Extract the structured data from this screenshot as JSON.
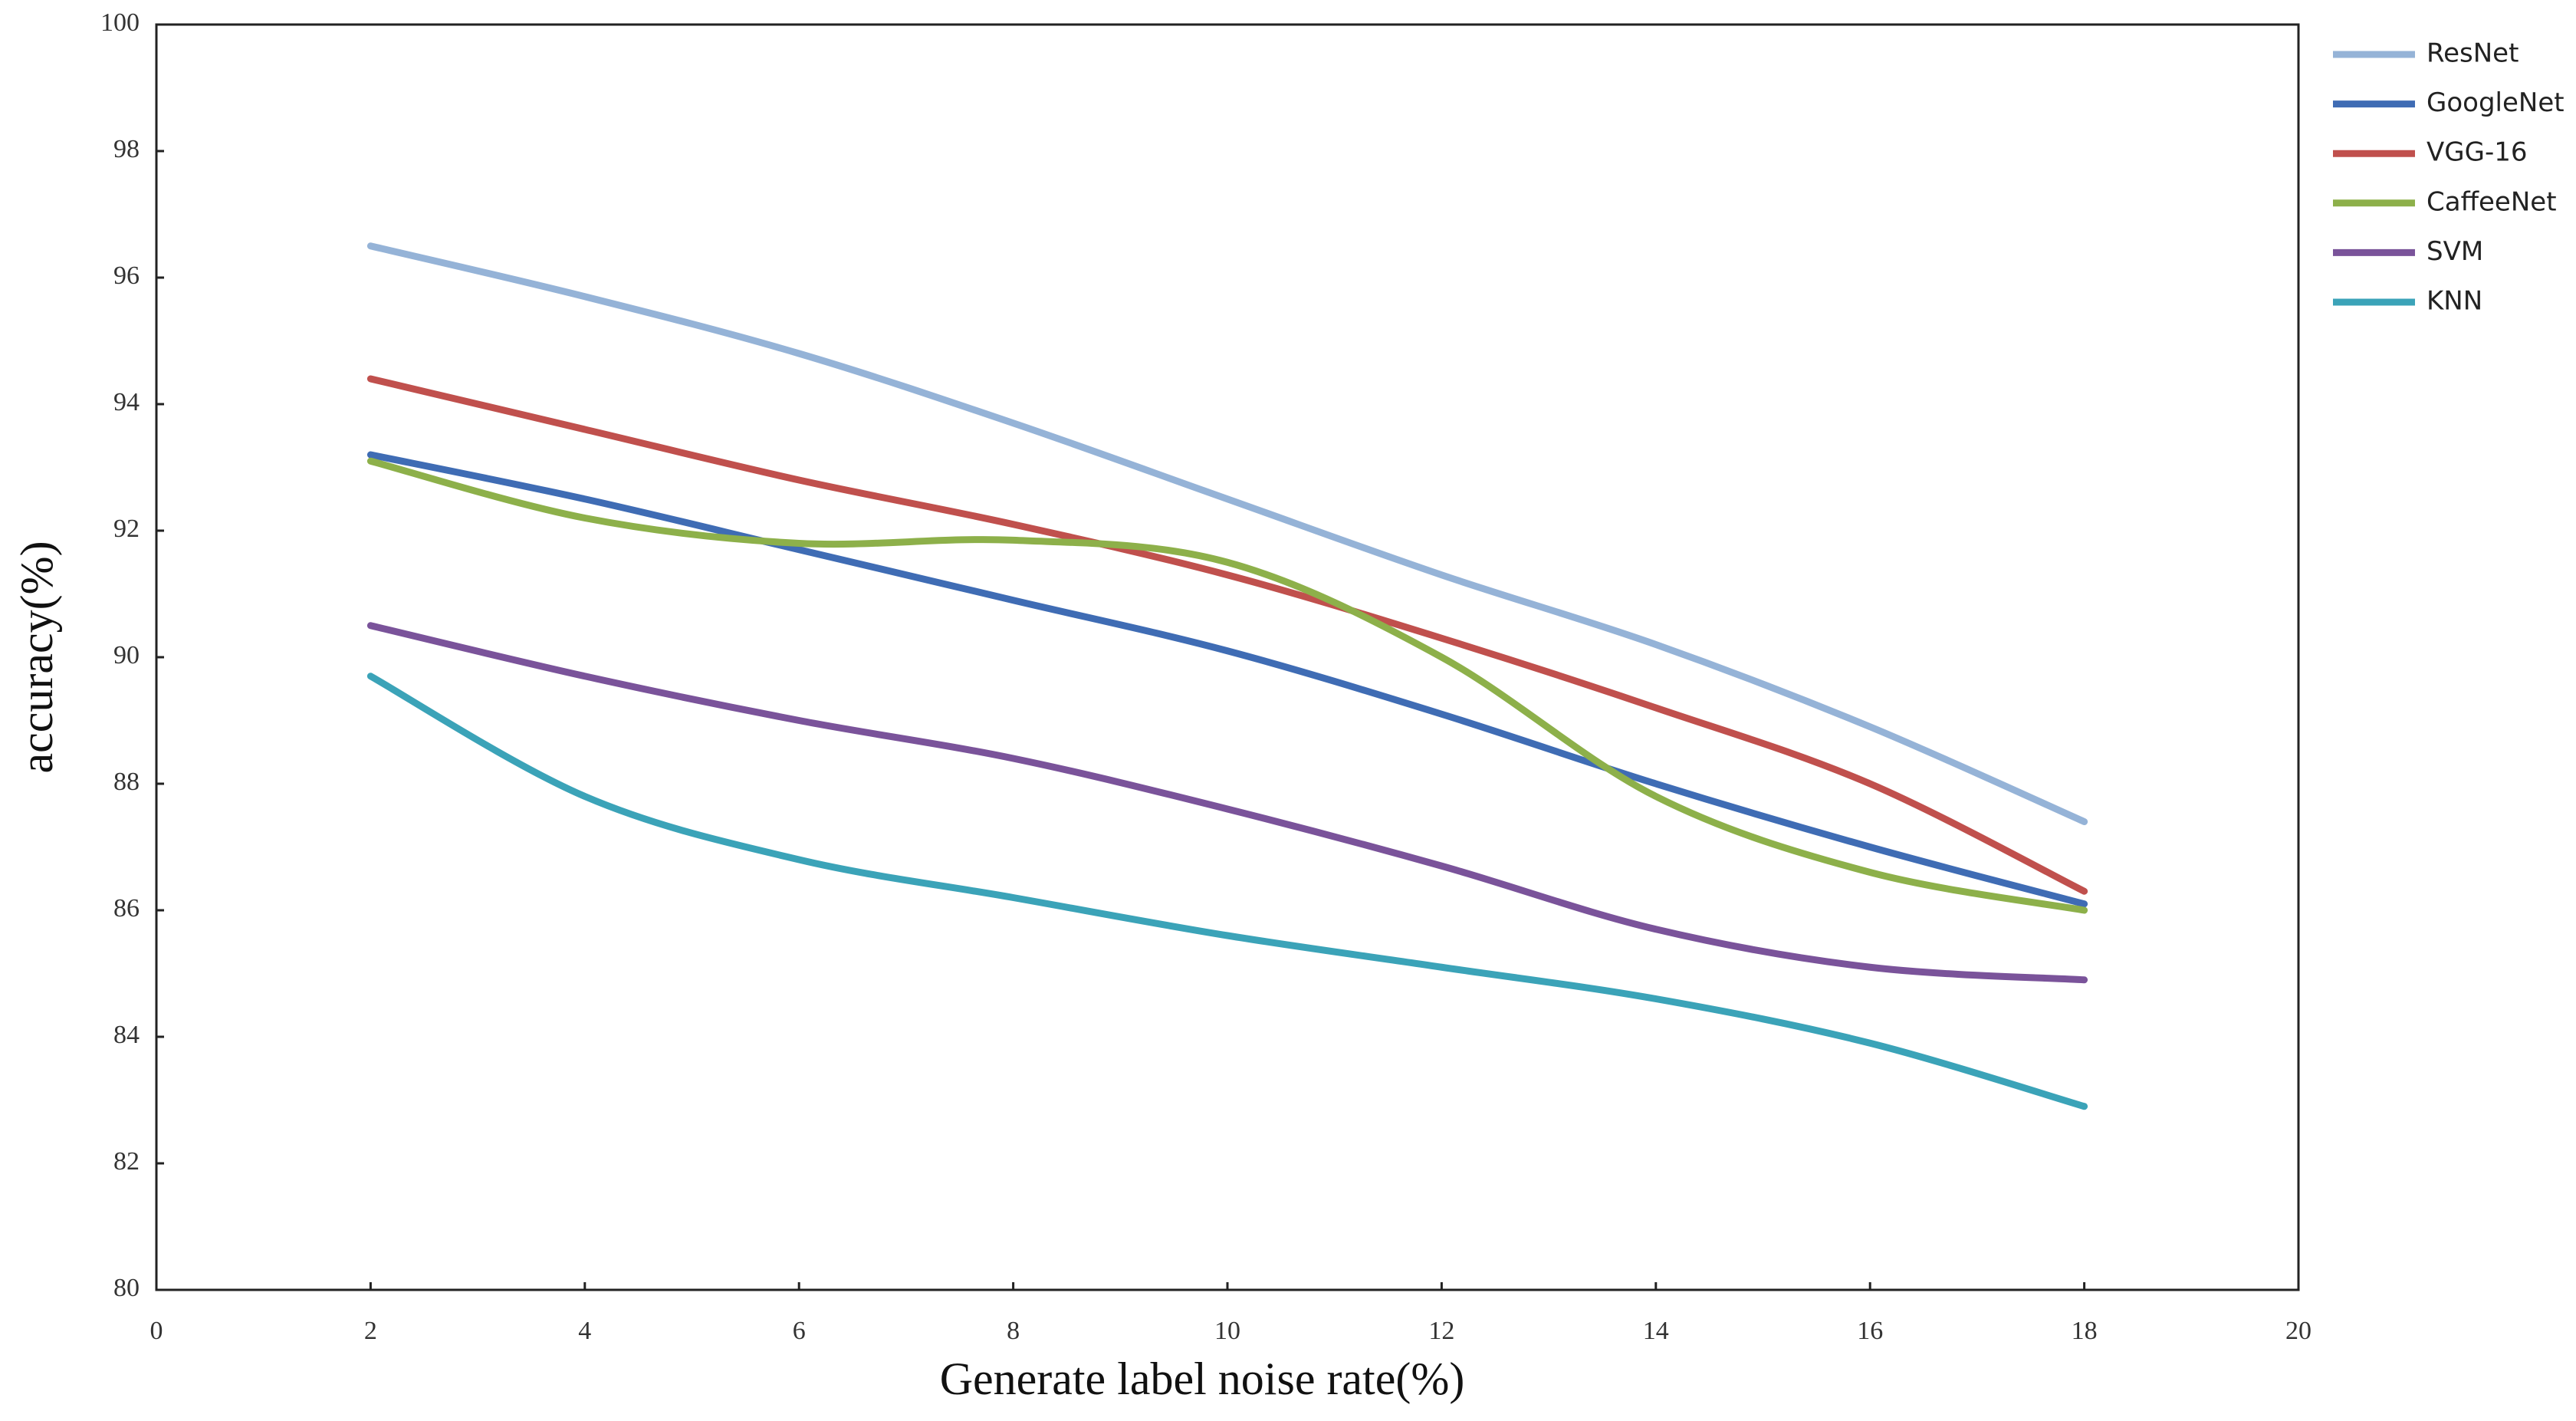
{
  "chart_data": {
    "type": "line",
    "xlabel": "Generate label noise rate(%)",
    "ylabel": "accuracy(%)",
    "x": [
      2,
      4,
      6,
      8,
      10,
      12,
      14,
      16,
      18
    ],
    "series": [
      {
        "name": "ResNet",
        "color": "#95b3d7",
        "values": [
          96.5,
          95.7,
          94.8,
          93.7,
          92.5,
          91.3,
          90.2,
          88.9,
          87.4
        ]
      },
      {
        "name": "GoogleNet",
        "color": "#3f6cb4",
        "values": [
          93.2,
          92.5,
          91.7,
          90.9,
          90.1,
          89.1,
          88.0,
          87.0,
          86.1
        ]
      },
      {
        "name": "VGG-16",
        "color": "#c0504d",
        "values": [
          94.4,
          93.6,
          92.8,
          92.1,
          91.3,
          90.3,
          89.2,
          88.0,
          86.3
        ]
      },
      {
        "name": "CaffeeNet",
        "color": "#8db04a",
        "values": [
          93.1,
          92.2,
          91.8,
          91.85,
          91.5,
          90.0,
          87.8,
          86.6,
          86.0
        ]
      },
      {
        "name": "SVM",
        "color": "#7a539a",
        "values": [
          90.5,
          89.7,
          89.0,
          88.4,
          87.6,
          86.7,
          85.7,
          85.1,
          84.9
        ]
      },
      {
        "name": "KNN",
        "color": "#3ba3b8",
        "values": [
          89.7,
          87.8,
          86.8,
          86.2,
          85.6,
          85.1,
          84.6,
          83.9,
          82.9
        ]
      }
    ],
    "xlim": [
      0,
      20
    ],
    "xticks": [
      0,
      2,
      4,
      6,
      8,
      10,
      12,
      14,
      16,
      18,
      20
    ],
    "ylim": [
      80,
      100
    ],
    "yticks": [
      80,
      82,
      84,
      86,
      88,
      90,
      92,
      94,
      96,
      98,
      100
    ],
    "legend": "right"
  }
}
